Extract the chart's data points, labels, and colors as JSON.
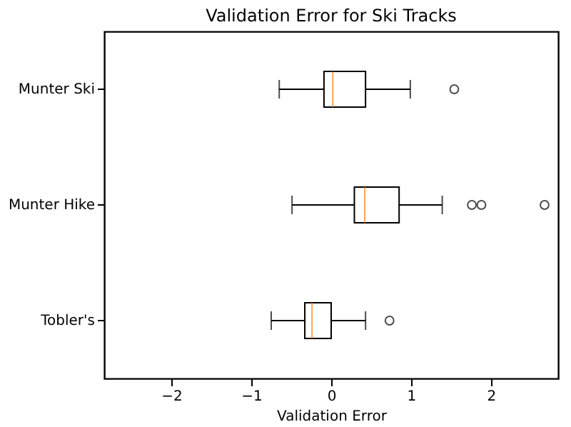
{
  "chart_data": {
    "type": "box",
    "title": "Validation Error for Ski Tracks",
    "xlabel": "Validation Error",
    "orientation": "horizontal",
    "categories": [
      "Munter Ski",
      "Munter Hike",
      "Tobler's"
    ],
    "series": [
      {
        "color": "#ff7f0e",
        "boxes": [
          {
            "low": -0.65,
            "q1": -0.09,
            "median": 0.02,
            "q3": 0.43,
            "high": 0.99,
            "outliers": [
              1.54
            ]
          },
          {
            "low": -0.49,
            "q1": 0.29,
            "median": 0.42,
            "q3": 0.85,
            "high": 1.39,
            "outliers": [
              1.76,
              1.88,
              2.67
            ]
          },
          {
            "low": -0.75,
            "q1": -0.33,
            "median": -0.24,
            "q3": 0.0,
            "high": 0.43,
            "outliers": [
              0.73
            ]
          }
        ]
      }
    ],
    "xlim": [
      -2.84,
      2.84
    ],
    "xticks": [
      -2,
      -1,
      0,
      1,
      2
    ],
    "grid": false
  }
}
